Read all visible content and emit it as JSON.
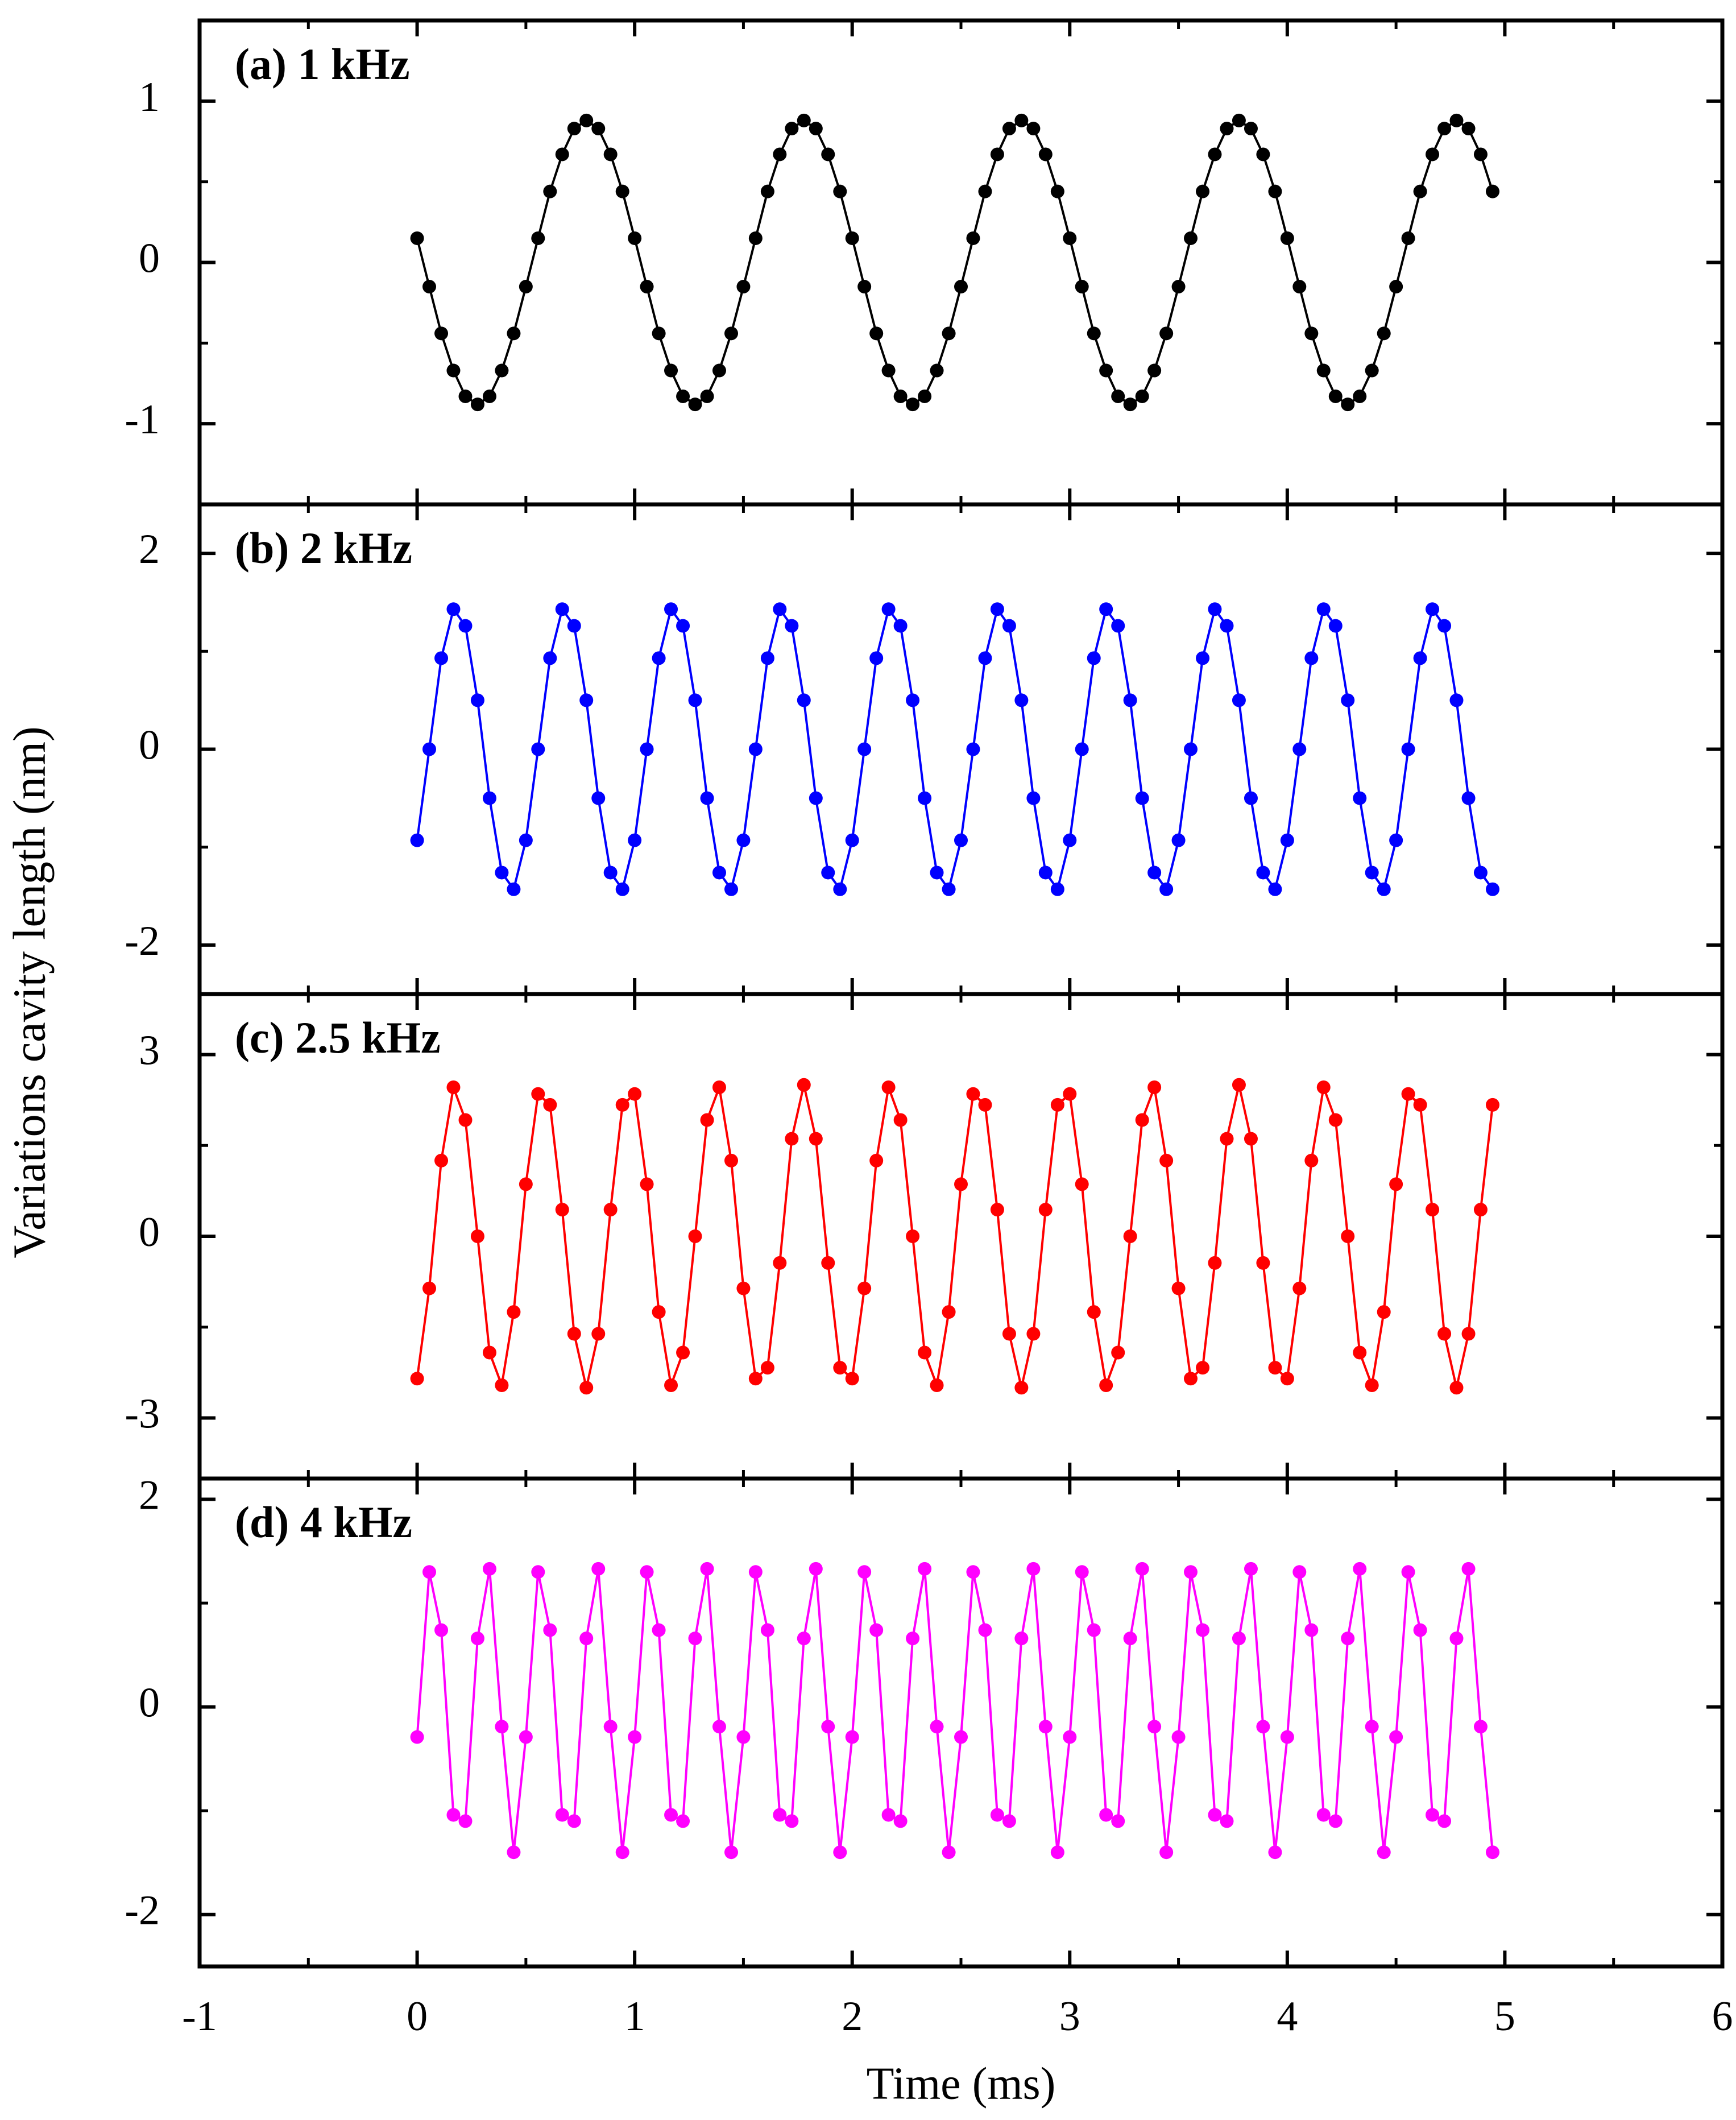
{
  "axis_labels": {
    "x": "Time (ms)",
    "y": "Variations cavity length (nm)"
  },
  "chart_data": [
    {
      "type": "line",
      "title": "(a) 1 kHz",
      "color": "#000000",
      "xlim": [
        -1,
        6
      ],
      "xticks": [
        -1,
        0,
        1,
        2,
        3,
        4,
        5,
        6
      ],
      "ylim": [
        -1.5,
        1.5
      ],
      "yticks": [
        -1,
        0,
        1
      ],
      "x": [
        0,
        0.056,
        0.111,
        0.167,
        0.222,
        0.278,
        0.333,
        0.389,
        0.444,
        0.5,
        0.556,
        0.611,
        0.667,
        0.722,
        0.778,
        0.833,
        0.889,
        0.944,
        1,
        1.056,
        1.111,
        1.167,
        1.222,
        1.278,
        1.333,
        1.389,
        1.444,
        1.5,
        1.556,
        1.611,
        1.667,
        1.722,
        1.778,
        1.833,
        1.889,
        1.944,
        2,
        2.056,
        2.111,
        2.167,
        2.222,
        2.278,
        2.333,
        2.389,
        2.444,
        2.5,
        2.556,
        2.611,
        2.667,
        2.722,
        2.778,
        2.833,
        2.889,
        2.944,
        3,
        3.056,
        3.111,
        3.167,
        3.222,
        3.278,
        3.333,
        3.389,
        3.444,
        3.5,
        3.556,
        3.611,
        3.667,
        3.722,
        3.778,
        3.833,
        3.889,
        3.944,
        4,
        4.056,
        4.111,
        4.167,
        4.222,
        4.278,
        4.333,
        4.389,
        4.444,
        4.5,
        4.556,
        4.611,
        4.667,
        4.722,
        4.778,
        4.833,
        4.889,
        4.944
      ],
      "values": [
        0.15,
        -0.15,
        -0.44,
        -0.67,
        -0.83,
        -0.88,
        -0.83,
        -0.67,
        -0.44,
        -0.15,
        0.15,
        0.44,
        0.67,
        0.83,
        0.88,
        0.83,
        0.67,
        0.44,
        0.15,
        -0.15,
        -0.44,
        -0.67,
        -0.83,
        -0.88,
        -0.83,
        -0.67,
        -0.44,
        -0.15,
        0.15,
        0.44,
        0.67,
        0.83,
        0.88,
        0.83,
        0.67,
        0.44,
        0.15,
        -0.15,
        -0.44,
        -0.67,
        -0.83,
        -0.88,
        -0.83,
        -0.67,
        -0.44,
        -0.15,
        0.15,
        0.44,
        0.67,
        0.83,
        0.88,
        0.83,
        0.67,
        0.44,
        0.15,
        -0.15,
        -0.44,
        -0.67,
        -0.83,
        -0.88,
        -0.83,
        -0.67,
        -0.44,
        -0.15,
        0.15,
        0.44,
        0.67,
        0.83,
        0.88,
        0.83,
        0.67,
        0.44,
        0.15,
        -0.15,
        -0.44,
        -0.67,
        -0.83,
        -0.88,
        -0.83,
        -0.67,
        -0.44,
        -0.15,
        0.15,
        0.44,
        0.67,
        0.83,
        0.88,
        0.83,
        0.67,
        0.44
      ]
    },
    {
      "type": "line",
      "title": "(b) 2 kHz",
      "color": "#0000ff",
      "xlim": [
        -1,
        6
      ],
      "xticks": [
        -1,
        0,
        1,
        2,
        3,
        4,
        5,
        6
      ],
      "ylim": [
        -2.5,
        2.5
      ],
      "yticks": [
        -2,
        0,
        2
      ],
      "x": [
        0,
        0.056,
        0.111,
        0.167,
        0.222,
        0.278,
        0.333,
        0.389,
        0.444,
        0.5,
        0.556,
        0.611,
        0.667,
        0.722,
        0.778,
        0.833,
        0.889,
        0.944,
        1,
        1.056,
        1.111,
        1.167,
        1.222,
        1.278,
        1.333,
        1.389,
        1.444,
        1.5,
        1.556,
        1.611,
        1.667,
        1.722,
        1.778,
        1.833,
        1.889,
        1.944,
        2,
        2.056,
        2.111,
        2.167,
        2.222,
        2.278,
        2.333,
        2.389,
        2.444,
        2.5,
        2.556,
        2.611,
        2.667,
        2.722,
        2.778,
        2.833,
        2.889,
        2.944,
        3,
        3.056,
        3.111,
        3.167,
        3.222,
        3.278,
        3.333,
        3.389,
        3.444,
        3.5,
        3.556,
        3.611,
        3.667,
        3.722,
        3.778,
        3.833,
        3.889,
        3.944,
        4,
        4.056,
        4.111,
        4.167,
        4.222,
        4.278,
        4.333,
        4.389,
        4.444,
        4.5,
        4.556,
        4.611,
        4.667,
        4.722,
        4.778,
        4.833,
        4.889,
        4.944
      ],
      "values": [
        -0.93,
        0,
        0.93,
        1.43,
        1.26,
        0.5,
        -0.5,
        -1.26,
        -1.43,
        -0.93,
        0,
        0.93,
        1.43,
        1.26,
        0.5,
        -0.5,
        -1.26,
        -1.43,
        -0.93,
        0,
        0.93,
        1.43,
        1.26,
        0.5,
        -0.5,
        -1.26,
        -1.43,
        -0.93,
        0,
        0.93,
        1.43,
        1.26,
        0.5,
        -0.5,
        -1.26,
        -1.43,
        -0.93,
        0,
        0.93,
        1.43,
        1.26,
        0.5,
        -0.5,
        -1.26,
        -1.43,
        -0.93,
        0,
        0.93,
        1.43,
        1.26,
        0.5,
        -0.5,
        -1.26,
        -1.43,
        -0.93,
        0,
        0.93,
        1.43,
        1.26,
        0.5,
        -0.5,
        -1.26,
        -1.43,
        -0.93,
        0,
        0.93,
        1.43,
        1.26,
        0.5,
        -0.5,
        -1.26,
        -1.43,
        -0.93,
        0,
        0.93,
        1.43,
        1.26,
        0.5,
        -0.5,
        -1.26,
        -1.43,
        -0.93,
        0,
        0.93,
        1.43,
        1.26,
        0.5,
        -0.5,
        -1.26,
        -1.43
      ]
    },
    {
      "type": "line",
      "title": "(c) 2.5 kHz",
      "color": "#ff0000",
      "xlim": [
        -1,
        6
      ],
      "xticks": [
        -1,
        0,
        1,
        2,
        3,
        4,
        5,
        6
      ],
      "ylim": [
        -4,
        4
      ],
      "yticks": [
        -3,
        0,
        3
      ],
      "x": [
        0,
        0.056,
        0.111,
        0.167,
        0.222,
        0.278,
        0.333,
        0.389,
        0.444,
        0.5,
        0.556,
        0.611,
        0.667,
        0.722,
        0.778,
        0.833,
        0.889,
        0.944,
        1,
        1.056,
        1.111,
        1.167,
        1.222,
        1.278,
        1.333,
        1.389,
        1.444,
        1.5,
        1.556,
        1.611,
        1.667,
        1.722,
        1.778,
        1.833,
        1.889,
        1.944,
        2,
        2.056,
        2.111,
        2.167,
        2.222,
        2.278,
        2.333,
        2.389,
        2.444,
        2.5,
        2.556,
        2.611,
        2.667,
        2.722,
        2.778,
        2.833,
        2.889,
        2.944,
        3,
        3.056,
        3.111,
        3.167,
        3.222,
        3.278,
        3.333,
        3.389,
        3.444,
        3.5,
        3.556,
        3.611,
        3.667,
        3.722,
        3.778,
        3.833,
        3.889,
        3.944,
        4,
        4.056,
        4.111,
        4.167,
        4.222,
        4.278,
        4.333,
        4.389,
        4.444,
        4.5,
        4.556,
        4.611,
        4.667,
        4.722,
        4.778,
        4.833,
        4.889,
        4.944
      ],
      "values": [
        -2.35,
        -0.86,
        1.25,
        2.46,
        1.92,
        0,
        -1.92,
        -2.46,
        -1.25,
        0.86,
        2.35,
        2.17,
        0.44,
        -1.61,
        -2.5,
        -1.61,
        0.44,
        2.17,
        2.35,
        0.86,
        -1.25,
        -2.46,
        -1.92,
        0,
        1.92,
        2.46,
        1.25,
        -0.86,
        -2.35,
        -2.17,
        -0.44,
        1.61,
        2.5,
        1.61,
        -0.44,
        -2.17,
        -2.35,
        -0.86,
        1.25,
        2.46,
        1.92,
        0,
        -1.92,
        -2.46,
        -1.25,
        0.86,
        2.35,
        2.17,
        0.44,
        -1.61,
        -2.5,
        -1.61,
        0.44,
        2.17,
        2.35,
        0.86,
        -1.25,
        -2.46,
        -1.92,
        0,
        1.92,
        2.46,
        1.25,
        -0.86,
        -2.35,
        -2.17,
        -0.44,
        1.61,
        2.5,
        1.61,
        -0.44,
        -2.17,
        -2.35,
        -0.86,
        1.25,
        2.46,
        1.92,
        0,
        -1.92,
        -2.46,
        -1.25,
        0.86,
        2.35,
        2.17,
        0.44,
        -1.61,
        -2.5,
        -1.61,
        0.44,
        2.17
      ]
    },
    {
      "type": "line",
      "title": "(d) 4 kHz",
      "color": "#ff00ff",
      "xlim": [
        -1,
        6
      ],
      "xticks": [
        -1,
        0,
        1,
        2,
        3,
        4,
        5,
        6
      ],
      "ylim": [
        -2.5,
        2.2
      ],
      "yticks": [
        -2,
        0,
        2
      ],
      "x": [
        0,
        0.056,
        0.111,
        0.167,
        0.222,
        0.278,
        0.333,
        0.389,
        0.444,
        0.5,
        0.556,
        0.611,
        0.667,
        0.722,
        0.778,
        0.833,
        0.889,
        0.944,
        1,
        1.056,
        1.111,
        1.167,
        1.222,
        1.278,
        1.333,
        1.389,
        1.444,
        1.5,
        1.556,
        1.611,
        1.667,
        1.722,
        1.778,
        1.833,
        1.889,
        1.944,
        2,
        2.056,
        2.111,
        2.167,
        2.222,
        2.278,
        2.333,
        2.389,
        2.444,
        2.5,
        2.556,
        2.611,
        2.667,
        2.722,
        2.778,
        2.833,
        2.889,
        2.944,
        3,
        3.056,
        3.111,
        3.167,
        3.222,
        3.278,
        3.333,
        3.389,
        3.444,
        3.5,
        3.556,
        3.611,
        3.667,
        3.722,
        3.778,
        3.833,
        3.889,
        3.944,
        4,
        4.056,
        4.111,
        4.167,
        4.222,
        4.278,
        4.333,
        4.389,
        4.444,
        4.5,
        4.556,
        4.611,
        4.667,
        4.722,
        4.778,
        4.833,
        4.889,
        4.944
      ],
      "values": [
        -0.29,
        1.3,
        0.74,
        -1.04,
        -1.1,
        0.66,
        1.33,
        -0.19,
        -1.4,
        -0.29,
        1.3,
        0.74,
        -1.04,
        -1.1,
        0.66,
        1.33,
        -0.19,
        -1.4,
        -0.29,
        1.3,
        0.74,
        -1.04,
        -1.1,
        0.66,
        1.33,
        -0.19,
        -1.4,
        -0.29,
        1.3,
        0.74,
        -1.04,
        -1.1,
        0.66,
        1.33,
        -0.19,
        -1.4,
        -0.29,
        1.3,
        0.74,
        -1.04,
        -1.1,
        0.66,
        1.33,
        -0.19,
        -1.4,
        -0.29,
        1.3,
        0.74,
        -1.04,
        -1.1,
        0.66,
        1.33,
        -0.19,
        -1.4,
        -0.29,
        1.3,
        0.74,
        -1.04,
        -1.1,
        0.66,
        1.33,
        -0.19,
        -1.4,
        -0.29,
        1.3,
        0.74,
        -1.04,
        -1.1,
        0.66,
        1.33,
        -0.19,
        -1.4,
        -0.29,
        1.3,
        0.74,
        -1.04,
        -1.1,
        0.66,
        1.33,
        -0.19,
        -1.4,
        -0.29,
        1.3,
        0.74,
        -1.04,
        -1.1,
        0.66,
        1.33,
        -0.19,
        -1.4
      ]
    }
  ]
}
